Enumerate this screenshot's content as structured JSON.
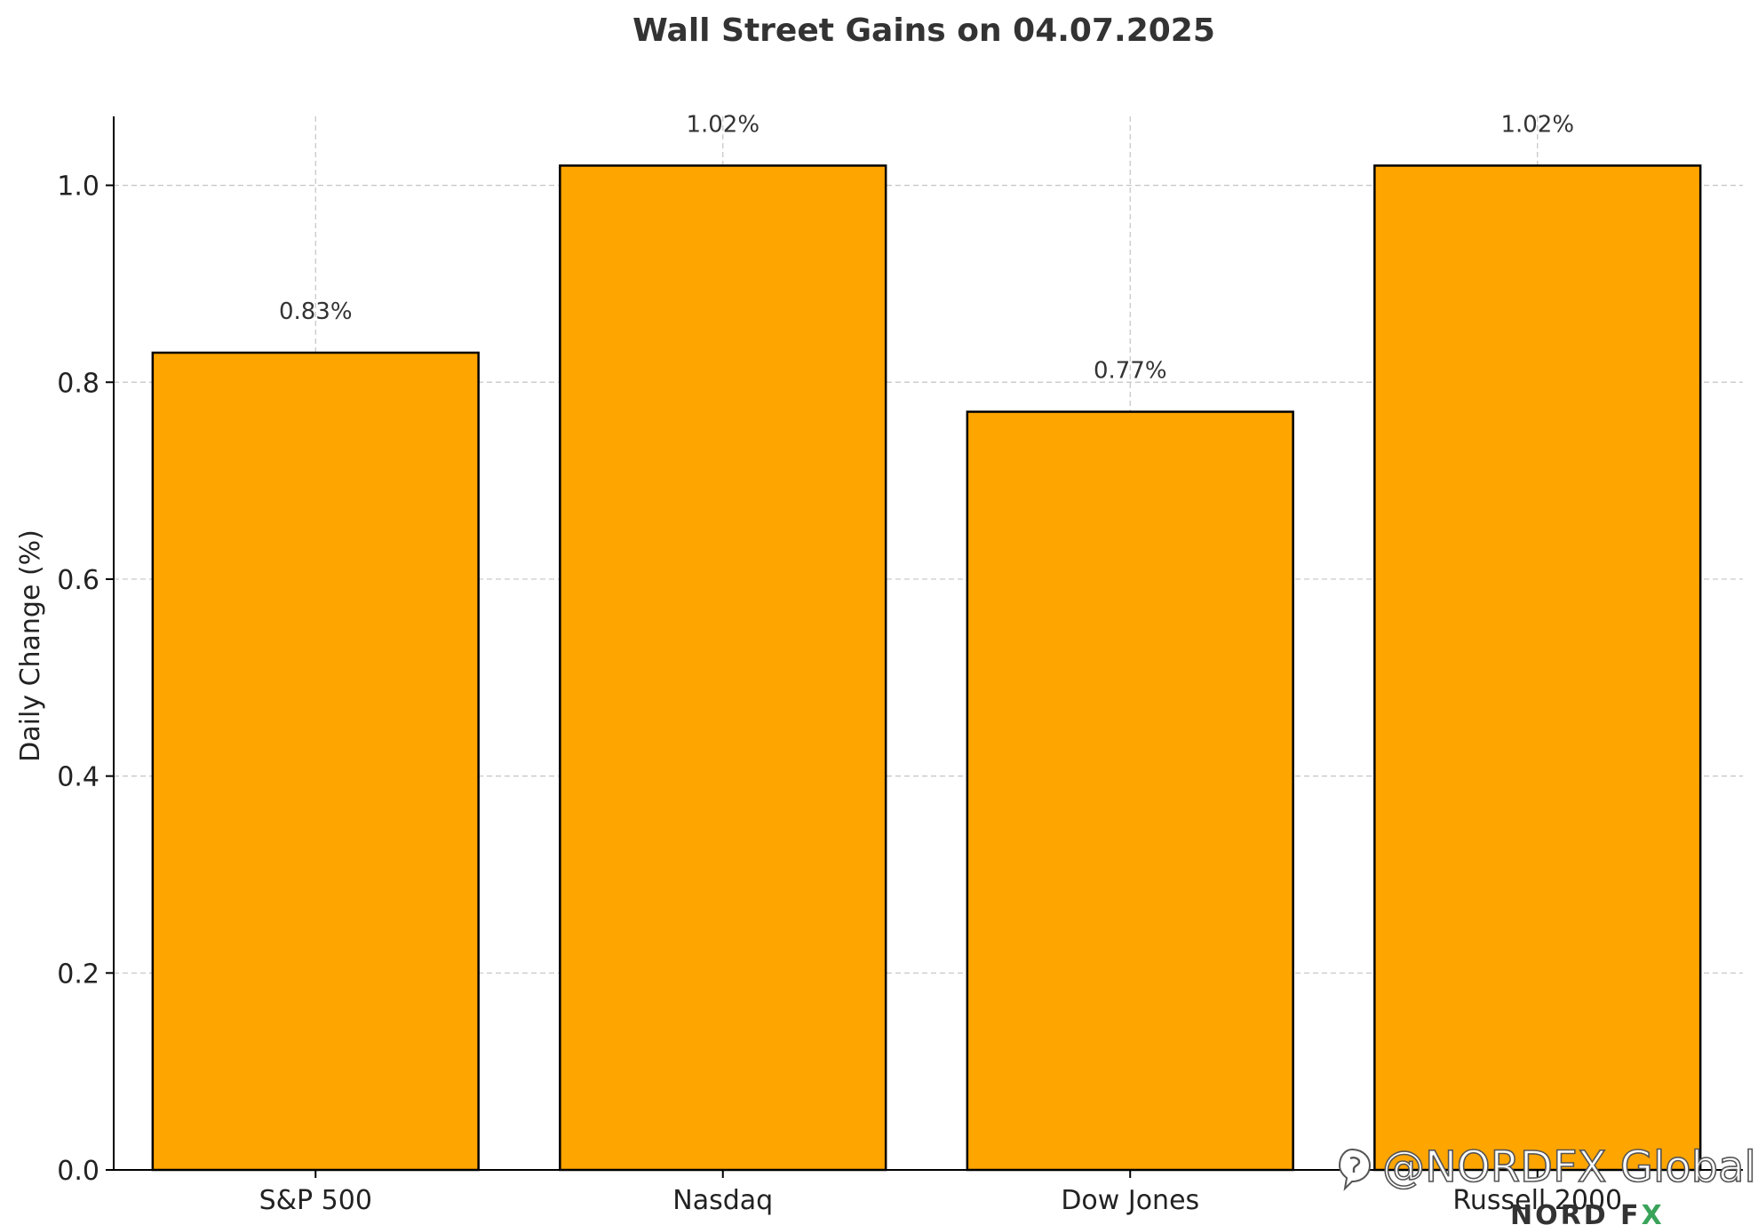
{
  "chart_data": {
    "type": "bar",
    "title": "Wall Street Gains on 04.07.2025",
    "xlabel": "",
    "ylabel": "Daily Change (%)",
    "categories": [
      "S&P 500",
      "Nasdaq",
      "Dow Jones",
      "Russell 2000"
    ],
    "values": [
      0.83,
      1.02,
      0.77,
      1.02
    ],
    "data_labels": [
      "0.83%",
      "1.02%",
      "0.77%",
      "1.02%"
    ],
    "ylim": [
      0,
      1.07
    ],
    "yticks": [
      0.0,
      0.2,
      0.4,
      0.6,
      0.8,
      1.0
    ],
    "ytick_labels": [
      "0.0",
      "0.2",
      "0.4",
      "0.6",
      "0.8",
      "1.0"
    ],
    "grid": true,
    "bar_color": "#FFA500",
    "bar_edge_color": "#000000"
  },
  "watermark": {
    "handle": "@NORDFX Global",
    "brand": "NORD FX",
    "brand_accent_color": "#3aa35a"
  }
}
